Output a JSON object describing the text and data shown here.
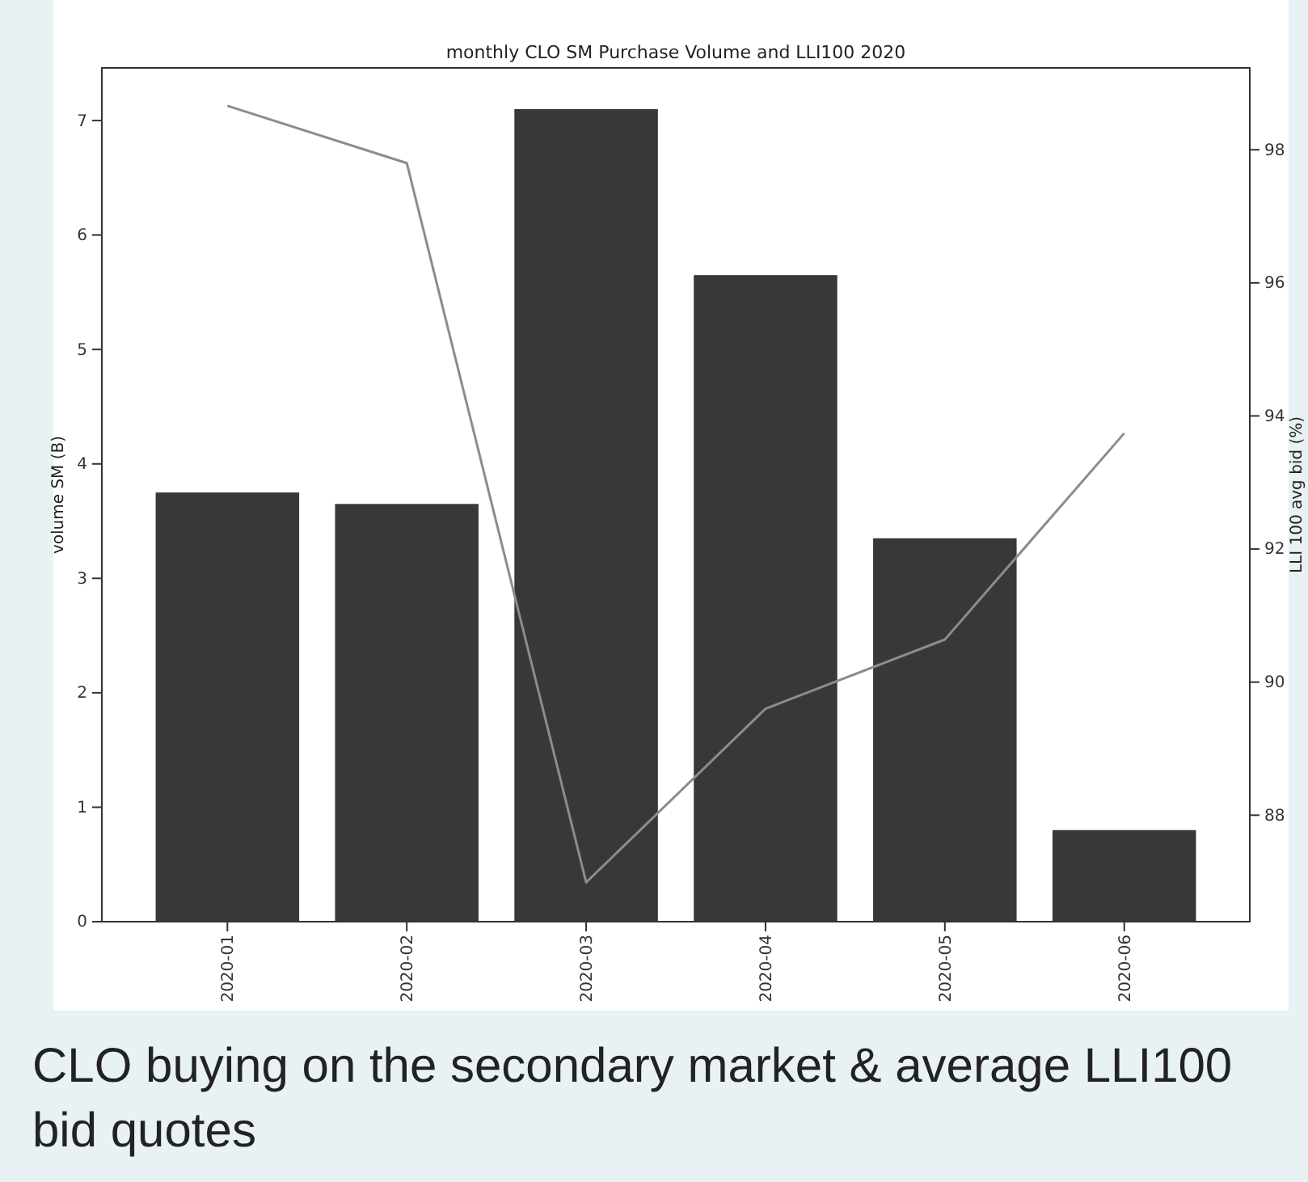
{
  "chart_data": {
    "type": "bar",
    "title": "monthly CLO SM Purchase Volume and LLI100 2020",
    "ylabel": "volume SM (B)",
    "y2label": "LLI 100 avg bid (%)",
    "categories": [
      "2020-01",
      "2020-02",
      "2020-03",
      "2020-04",
      "2020-05",
      "2020-06"
    ],
    "series": [
      {
        "color": "#383838",
        "values": [
          3.75,
          3.65,
          7.1,
          5.65,
          3.35,
          0.8
        ]
      },
      {
        "type": "line",
        "axis": "y2",
        "color": "#8c8c8c",
        "values": [
          98.66,
          97.8,
          86.99,
          89.6,
          90.64,
          93.74
        ]
      }
    ],
    "ylim": [
      0,
      7.46
    ],
    "yticks": [
      0,
      1,
      2,
      3,
      4,
      5,
      6,
      7
    ],
    "y2lim": [
      86.4,
      99.23
    ],
    "y2ticks": [
      88,
      90,
      92,
      94,
      96,
      98
    ],
    "annotations": [
      "CLO buying on the secondary market & average LLI100 bid quotes"
    ]
  }
}
